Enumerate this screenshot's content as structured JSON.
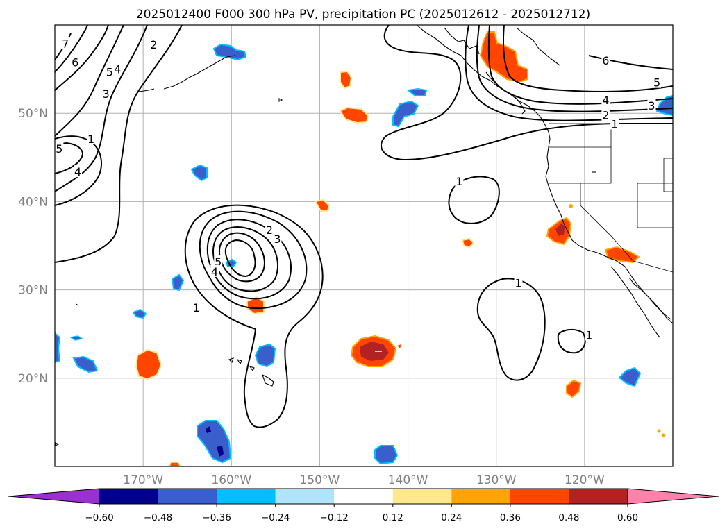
{
  "title": "2025012400 F000 300 hPa PV, precipitation PC (2025012612 - 2025012712)",
  "map": {
    "lon_range": [
      -180,
      -110
    ],
    "lat_range": [
      10,
      60
    ],
    "lat_ticks": [
      {
        "value": 50,
        "label": "50°N"
      },
      {
        "value": 40,
        "label": "40°N"
      },
      {
        "value": 30,
        "label": "30°N"
      },
      {
        "value": 20,
        "label": "20°N"
      }
    ],
    "lon_ticks": [
      {
        "value": -170,
        "label": "170°W"
      },
      {
        "value": -160,
        "label": "160°W"
      },
      {
        "value": -150,
        "label": "150°W"
      },
      {
        "value": -140,
        "label": "140°W"
      },
      {
        "value": -130,
        "label": "130°W"
      },
      {
        "value": -120,
        "label": "120°W"
      }
    ],
    "gridlines": true,
    "pv_contour_color": "#000000",
    "pv_contour_labels": [
      {
        "text": "1",
        "lon": -175.9,
        "lat": 47.1
      },
      {
        "text": "2",
        "lon": -168.8,
        "lat": 57.8
      },
      {
        "text": "3",
        "lon": -174.2,
        "lat": 52.2
      },
      {
        "text": "4",
        "lon": -172.9,
        "lat": 55.0
      },
      {
        "text": "5",
        "lon": -173.8,
        "lat": 54.7
      },
      {
        "text": "6",
        "lon": -177.7,
        "lat": 55.8
      },
      {
        "text": "7",
        "lon": -178.8,
        "lat": 57.9
      },
      {
        "text": "5",
        "lon": -179.5,
        "lat": 46.0
      },
      {
        "text": "4",
        "lon": -177.4,
        "lat": 43.4
      },
      {
        "text": "2",
        "lon": -155.7,
        "lat": 36.8
      },
      {
        "text": "3",
        "lon": -154.8,
        "lat": 35.8
      },
      {
        "text": "5",
        "lon": -161.5,
        "lat": 33.2
      },
      {
        "text": "4",
        "lon": -161.9,
        "lat": 32.1
      },
      {
        "text": "1",
        "lon": -164.0,
        "lat": 28.0
      },
      {
        "text": "1",
        "lon": -134.2,
        "lat": 42.3
      },
      {
        "text": "1",
        "lon": -127.5,
        "lat": 30.8
      },
      {
        "text": "1",
        "lon": -119.5,
        "lat": 24.9
      },
      {
        "text": "6",
        "lon": -117.6,
        "lat": 56.0
      },
      {
        "text": "5",
        "lon": -111.8,
        "lat": 53.5
      },
      {
        "text": "4",
        "lon": -117.6,
        "lat": 51.5
      },
      {
        "text": "3",
        "lon": -112.4,
        "lat": 50.9
      },
      {
        "text": "2",
        "lon": -117.6,
        "lat": 49.8
      },
      {
        "text": "1",
        "lon": -116.6,
        "lat": 48.8
      }
    ]
  },
  "colorbar": {
    "labels": [
      "−0.60",
      "−0.48",
      "−0.36",
      "−0.24",
      "−0.12",
      "0.12",
      "0.24",
      "0.36",
      "0.48",
      "0.60"
    ],
    "colors": [
      "#9b30d0",
      "#00008b",
      "#3a5fcd",
      "#00bfff",
      "#afe4fa",
      "#ffffff",
      "#fde98c",
      "#ffa500",
      "#ff4500",
      "#b22222",
      "#ff82ab"
    ]
  },
  "colors": {
    "land_outline": "#000000",
    "grid": "#b0b0b0"
  }
}
